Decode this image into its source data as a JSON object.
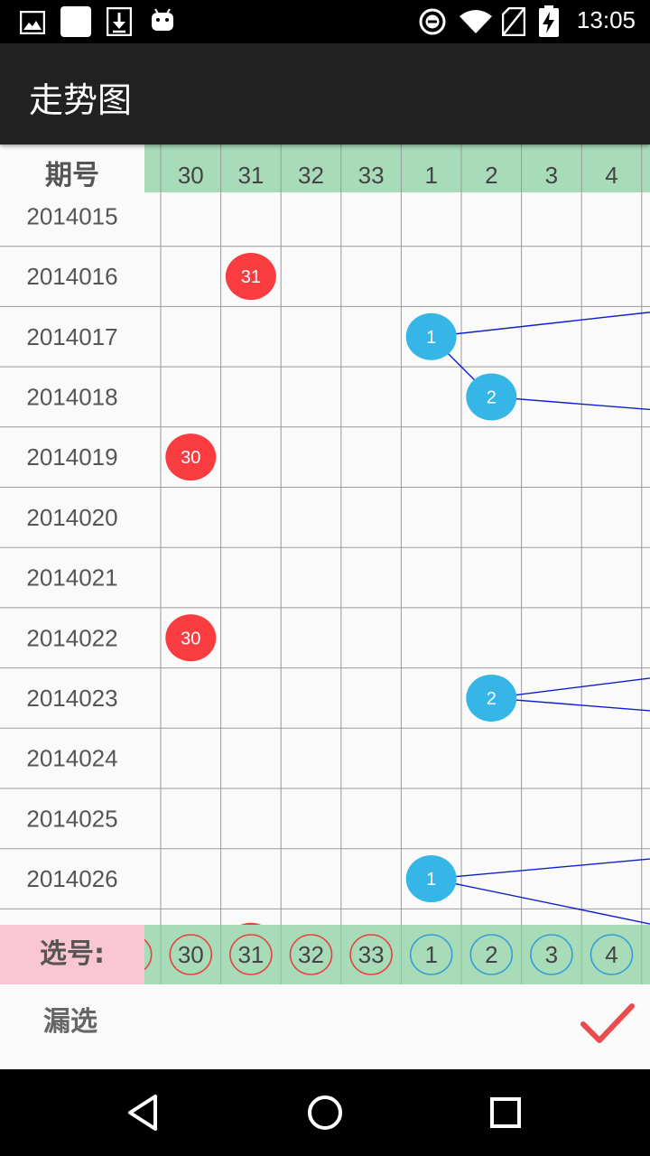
{
  "status_bar": {
    "time": "13:05",
    "left_icons": [
      "image-icon",
      "blank-square-icon",
      "download-icon",
      "android-icon"
    ],
    "right_icons": [
      "do-not-disturb-icon",
      "wifi-icon",
      "no-sim-icon",
      "battery-charging-icon"
    ]
  },
  "app_bar": {
    "title": "走势图"
  },
  "table": {
    "period_header": "期号",
    "columns": [
      {
        "label": "30",
        "kind": "red"
      },
      {
        "label": "31",
        "kind": "red"
      },
      {
        "label": "32",
        "kind": "red"
      },
      {
        "label": "33",
        "kind": "red"
      },
      {
        "label": "1",
        "kind": "blue"
      },
      {
        "label": "2",
        "kind": "blue"
      },
      {
        "label": "3",
        "kind": "blue"
      },
      {
        "label": "4",
        "kind": "blue"
      }
    ],
    "periods": [
      "2014015",
      "2014016",
      "2014017",
      "2014018",
      "2014019",
      "2014020",
      "2014021",
      "2014022",
      "2014023",
      "2014024",
      "2014025",
      "2014026"
    ],
    "red_hits": [
      {
        "period": "2014016",
        "number": "31"
      },
      {
        "period": "2014019",
        "number": "30"
      },
      {
        "period": "2014022",
        "number": "30"
      }
    ],
    "blue_hits": [
      {
        "period": "2014017",
        "number": "1"
      },
      {
        "period": "2014018",
        "number": "2"
      },
      {
        "period": "2014023",
        "number": "2"
      },
      {
        "period": "2014026",
        "number": "1"
      }
    ],
    "colors": {
      "red": "#f83c40",
      "blue": "#36b6e6",
      "trend_line": "#0c1fd0",
      "header_bg": "#a8dcb9",
      "grid": "#9a9a9a"
    }
  },
  "selection": {
    "label": "选号:",
    "red_numbers": [
      "30",
      "31",
      "32",
      "33"
    ],
    "blue_numbers": [
      "1",
      "2",
      "3",
      "4"
    ],
    "label_bg": "#fbc6d4"
  },
  "bottom": {
    "label": "漏选",
    "confirm_icon": "checkmark-icon",
    "confirm_color": "#e94b4f"
  },
  "nav_bar": {
    "buttons": [
      "back-icon",
      "home-icon",
      "recents-icon"
    ]
  }
}
